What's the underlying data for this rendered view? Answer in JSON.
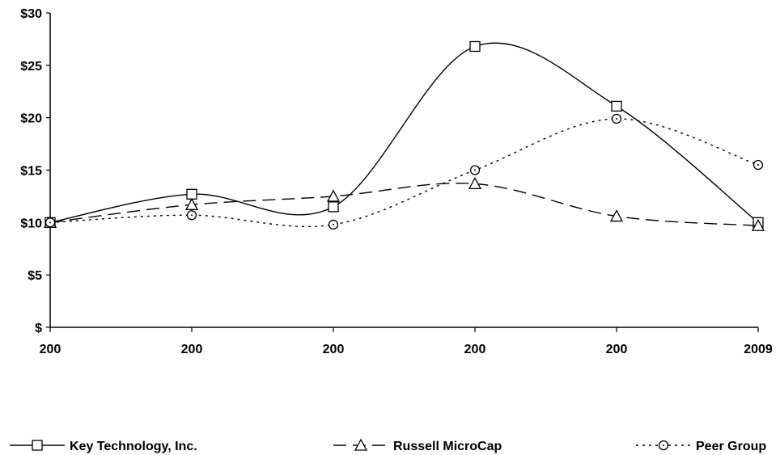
{
  "chart_data": {
    "type": "line",
    "title": "",
    "xlabel": "",
    "ylabel": "",
    "categories": [
      "200",
      "200",
      "200",
      "200",
      "200",
      "2009"
    ],
    "y_ticks": [
      "$",
      "$5",
      "$10",
      "$15",
      "$20",
      "$25",
      "$30"
    ],
    "y_tick_values": [
      0,
      5,
      10,
      15,
      20,
      25,
      30
    ],
    "ylim": [
      0,
      30
    ],
    "grid": false,
    "legend_position": "bottom",
    "series": [
      {
        "name": "Key Technology, Inc.",
        "values": [
          10.0,
          12.7,
          11.5,
          26.8,
          21.1,
          10.0
        ],
        "line": "solid",
        "marker": "square",
        "color": "#000000"
      },
      {
        "name": "Russell MicroCap",
        "values": [
          10.0,
          11.7,
          12.5,
          13.7,
          10.6,
          9.7
        ],
        "line": "dashed",
        "marker": "triangle",
        "color": "#000000"
      },
      {
        "name": "Peer Group",
        "values": [
          10.0,
          10.7,
          9.8,
          15.0,
          19.9,
          15.5
        ],
        "line": "dotted",
        "marker": "circle",
        "color": "#000000"
      }
    ]
  }
}
